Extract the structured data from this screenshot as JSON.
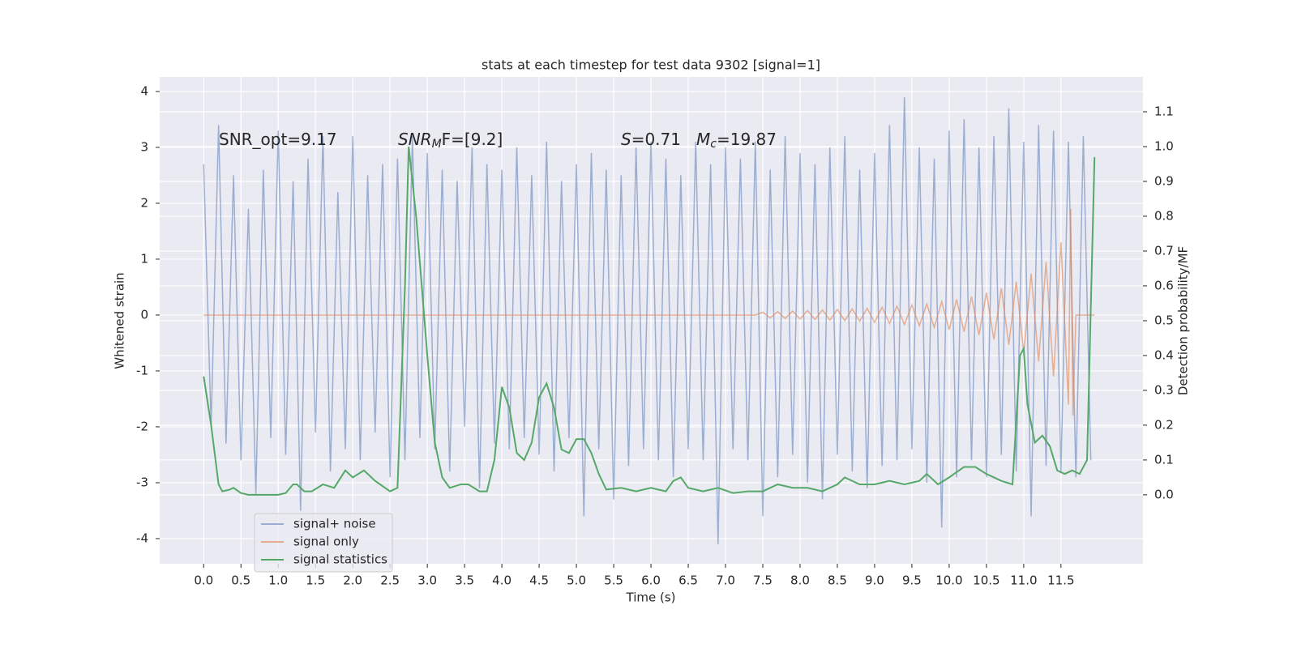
{
  "chart_data": {
    "type": "line",
    "title": "stats at each timestep for test data 9302 [signal=1]",
    "x_label": "Time (s)",
    "y_label": "Whitened strain",
    "y2_label": "Detection probability/MF",
    "annotations": [
      {
        "parts": [
          "SNR_opt=9.17"
        ]
      },
      {
        "parts": [
          "SNR",
          "M",
          "F=[9.2]"
        ]
      },
      {
        "parts": [
          "S",
          "=0.71"
        ]
      },
      {
        "parts": [
          "M",
          "c",
          "=19.87"
        ]
      }
    ],
    "xlim": [
      -0.59,
      12.6
    ],
    "ylim": [
      -4.45,
      4.26
    ],
    "y2lim": [
      -0.198,
      1.2
    ],
    "xticks": [
      {
        "value": 0,
        "label": "0.0"
      },
      {
        "value": 0.5,
        "label": "0.5"
      },
      {
        "value": 1,
        "label": "1.0"
      },
      {
        "value": 1.5,
        "label": "1.5"
      },
      {
        "value": 2,
        "label": "2.0"
      },
      {
        "value": 2.5,
        "label": "2.5"
      },
      {
        "value": 3,
        "label": "3.0"
      },
      {
        "value": 3.5,
        "label": "3.5"
      },
      {
        "value": 4,
        "label": "4.0"
      },
      {
        "value": 4.5,
        "label": "4.5"
      },
      {
        "value": 5,
        "label": "5.0"
      },
      {
        "value": 5.5,
        "label": "5.5"
      },
      {
        "value": 6,
        "label": "6.0"
      },
      {
        "value": 6.5,
        "label": "6.5"
      },
      {
        "value": 7,
        "label": "7.0"
      },
      {
        "value": 7.5,
        "label": "7.5"
      },
      {
        "value": 8,
        "label": "8.0"
      },
      {
        "value": 8.5,
        "label": "8.5"
      },
      {
        "value": 9,
        "label": "9.0"
      },
      {
        "value": 9.5,
        "label": "9.5"
      },
      {
        "value": 10,
        "label": "10.0"
      },
      {
        "value": 10.5,
        "label": "10.5"
      },
      {
        "value": 11,
        "label": "11.0"
      },
      {
        "value": 11.5,
        "label": "11.5"
      }
    ],
    "yticks": [
      -4,
      -3,
      -2,
      -1,
      0,
      1,
      2,
      3,
      4
    ],
    "y2ticks": [
      {
        "value": 0,
        "label": "0.0"
      },
      {
        "value": 0.1,
        "label": "0.1"
      },
      {
        "value": 0.2,
        "label": "0.2"
      },
      {
        "value": 0.3,
        "label": "0.3"
      },
      {
        "value": 0.4,
        "label": "0.4"
      },
      {
        "value": 0.5,
        "label": "0.5"
      },
      {
        "value": 0.6,
        "label": "0.6"
      },
      {
        "value": 0.7,
        "label": "0.7"
      },
      {
        "value": 0.8,
        "label": "0.8"
      },
      {
        "value": 0.9,
        "label": "0.9"
      },
      {
        "value": 1.0,
        "label": "1.0"
      },
      {
        "value": 1.1,
        "label": "1.1"
      }
    ],
    "grid": true,
    "legend": "lower left",
    "series": [
      {
        "name": "signal+ noise",
        "color": "#4c72b0",
        "opacity": 0.5,
        "x": [
          0,
          0.1,
          0.2,
          0.3,
          0.4,
          0.5,
          0.6,
          0.7,
          0.8,
          0.9,
          1,
          1.1,
          1.2,
          1.3,
          1.4,
          1.5,
          1.6,
          1.7,
          1.8,
          1.9,
          2,
          2.1,
          2.2,
          2.3,
          2.4,
          2.5,
          2.6,
          2.7,
          2.8,
          2.9,
          3,
          3.1,
          3.2,
          3.3,
          3.4,
          3.5,
          3.6,
          3.7,
          3.8,
          3.9,
          4,
          4.1,
          4.2,
          4.3,
          4.4,
          4.5,
          4.6,
          4.7,
          4.8,
          4.9,
          5,
          5.1,
          5.2,
          5.3,
          5.4,
          5.5,
          5.6,
          5.7,
          5.8,
          5.9,
          6,
          6.1,
          6.2,
          6.3,
          6.4,
          6.5,
          6.6,
          6.7,
          6.8,
          6.9,
          7,
          7.1,
          7.2,
          7.3,
          7.4,
          7.5,
          7.6,
          7.7,
          7.8,
          7.9,
          8,
          8.1,
          8.2,
          8.3,
          8.4,
          8.5,
          8.6,
          8.7,
          8.8,
          8.9,
          9,
          9.1,
          9.2,
          9.3,
          9.4,
          9.5,
          9.6,
          9.7,
          9.8,
          9.9,
          10,
          10.1,
          10.2,
          10.3,
          10.4,
          10.5,
          10.6,
          10.7,
          10.8,
          10.9,
          11,
          11.1,
          11.2,
          11.3,
          11.4,
          11.5,
          11.6,
          11.7,
          11.8,
          11.9
        ],
        "values": [
          2.7,
          -2.0,
          3.4,
          -2.3,
          2.5,
          -2.6,
          1.9,
          -3.2,
          2.6,
          -2.2,
          3.3,
          -2.5,
          2.4,
          -3.5,
          2.8,
          -2.1,
          3.2,
          -2.8,
          2.2,
          -2.4,
          3.2,
          -2.6,
          2.5,
          -2.1,
          2.7,
          -2.9,
          2.8,
          -2.6,
          3.2,
          -2.2,
          2.9,
          -2.4,
          2.6,
          -2.8,
          2.4,
          -2.0,
          3.0,
          -3.1,
          2.7,
          -2.3,
          2.6,
          -2.4,
          3.0,
          -2.2,
          2.5,
          -2.5,
          3.1,
          -2.8,
          2.4,
          -2.2,
          2.7,
          -3.6,
          2.9,
          -2.4,
          2.6,
          -3.3,
          2.5,
          -2.7,
          3.0,
          -2.4,
          3.1,
          -2.6,
          2.8,
          -2.9,
          2.5,
          -2.4,
          3.1,
          -2.6,
          2.7,
          -4.1,
          3.0,
          -2.4,
          2.8,
          -2.6,
          3.1,
          -3.6,
          2.6,
          -2.9,
          3.2,
          -2.5,
          2.9,
          -3.0,
          2.7,
          -3.3,
          3.0,
          -2.5,
          3.2,
          -2.8,
          2.6,
          -3.1,
          2.9,
          -2.7,
          3.4,
          -2.6,
          3.9,
          -2.4,
          3.0,
          -3.0,
          2.8,
          -3.8,
          3.3,
          -2.9,
          3.5,
          -2.6,
          3.0,
          -2.9,
          3.2,
          -2.5,
          3.7,
          -2.8,
          3.1,
          -3.6,
          3.4,
          -2.7,
          3.3,
          -2.8,
          3.1,
          -2.9,
          3.2,
          -2.6
        ]
      },
      {
        "name": "signal only",
        "color": "#dd8452",
        "opacity": 0.6,
        "x": [
          0,
          7.4,
          7.5,
          7.6,
          7.7,
          7.8,
          7.9,
          8,
          8.1,
          8.2,
          8.3,
          8.4,
          8.5,
          8.6,
          8.7,
          8.8,
          8.9,
          9,
          9.1,
          9.2,
          9.3,
          9.4,
          9.5,
          9.6,
          9.7,
          9.8,
          9.9,
          10,
          10.1,
          10.2,
          10.3,
          10.4,
          10.5,
          10.6,
          10.7,
          10.8,
          10.9,
          11,
          11.1,
          11.2,
          11.3,
          11.4,
          11.5,
          11.6,
          11.63,
          11.66,
          11.7,
          11.95
        ],
        "values": [
          0,
          0,
          0.05,
          -0.05,
          0.06,
          -0.06,
          0.07,
          -0.07,
          0.08,
          -0.08,
          0.09,
          -0.09,
          0.1,
          -0.1,
          0.11,
          -0.11,
          0.12,
          -0.13,
          0.14,
          -0.15,
          0.16,
          -0.17,
          0.18,
          -0.19,
          0.2,
          -0.22,
          0.24,
          -0.26,
          0.28,
          -0.3,
          0.33,
          -0.36,
          0.4,
          -0.44,
          0.48,
          -0.53,
          0.6,
          -0.66,
          0.74,
          -0.83,
          0.95,
          -1.1,
          1.3,
          -1.6,
          1.9,
          -1.8,
          0,
          0
        ]
      },
      {
        "name": "signal statistics",
        "color": "#55a868",
        "opacity": 1,
        "axis": "y2",
        "x": [
          0,
          0.1,
          0.2,
          0.25,
          0.35,
          0.4,
          0.5,
          0.6,
          0.8,
          1,
          1.1,
          1.2,
          1.25,
          1.35,
          1.45,
          1.6,
          1.75,
          1.9,
          2,
          2.15,
          2.3,
          2.5,
          2.6,
          2.7,
          2.75,
          2.85,
          3,
          3.1,
          3.2,
          3.3,
          3.45,
          3.55,
          3.7,
          3.8,
          3.9,
          4,
          4.1,
          4.2,
          4.3,
          4.4,
          4.5,
          4.6,
          4.7,
          4.8,
          4.9,
          5,
          5.1,
          5.2,
          5.3,
          5.4,
          5.6,
          5.8,
          6,
          6.2,
          6.3,
          6.4,
          6.5,
          6.7,
          6.9,
          7.1,
          7.3,
          7.5,
          7.7,
          7.9,
          8.1,
          8.3,
          8.5,
          8.6,
          8.8,
          9,
          9.2,
          9.4,
          9.6,
          9.7,
          9.85,
          10,
          10.2,
          10.35,
          10.5,
          10.7,
          10.85,
          10.95,
          11,
          11.05,
          11.15,
          11.25,
          11.35,
          11.45,
          11.55,
          11.65,
          11.75,
          11.85,
          11.95
        ],
        "values": [
          0.34,
          0.2,
          0.03,
          0.01,
          0.015,
          0.02,
          0.005,
          0,
          0,
          0,
          0.005,
          0.03,
          0.03,
          0.01,
          0.01,
          0.03,
          0.02,
          0.07,
          0.05,
          0.07,
          0.04,
          0.01,
          0.02,
          0.6,
          1.0,
          0.8,
          0.4,
          0.15,
          0.05,
          0.02,
          0.03,
          0.03,
          0.01,
          0.01,
          0.1,
          0.31,
          0.25,
          0.12,
          0.1,
          0.15,
          0.28,
          0.32,
          0.25,
          0.13,
          0.12,
          0.16,
          0.16,
          0.12,
          0.06,
          0.015,
          0.02,
          0.01,
          0.02,
          0.01,
          0.04,
          0.05,
          0.02,
          0.01,
          0.02,
          0.005,
          0.01,
          0.01,
          0.03,
          0.02,
          0.02,
          0.01,
          0.03,
          0.05,
          0.03,
          0.03,
          0.04,
          0.03,
          0.04,
          0.06,
          0.03,
          0.05,
          0.08,
          0.08,
          0.06,
          0.04,
          0.03,
          0.4,
          0.42,
          0.26,
          0.15,
          0.17,
          0.14,
          0.07,
          0.06,
          0.07,
          0.06,
          0.1,
          0.97
        ]
      }
    ]
  }
}
